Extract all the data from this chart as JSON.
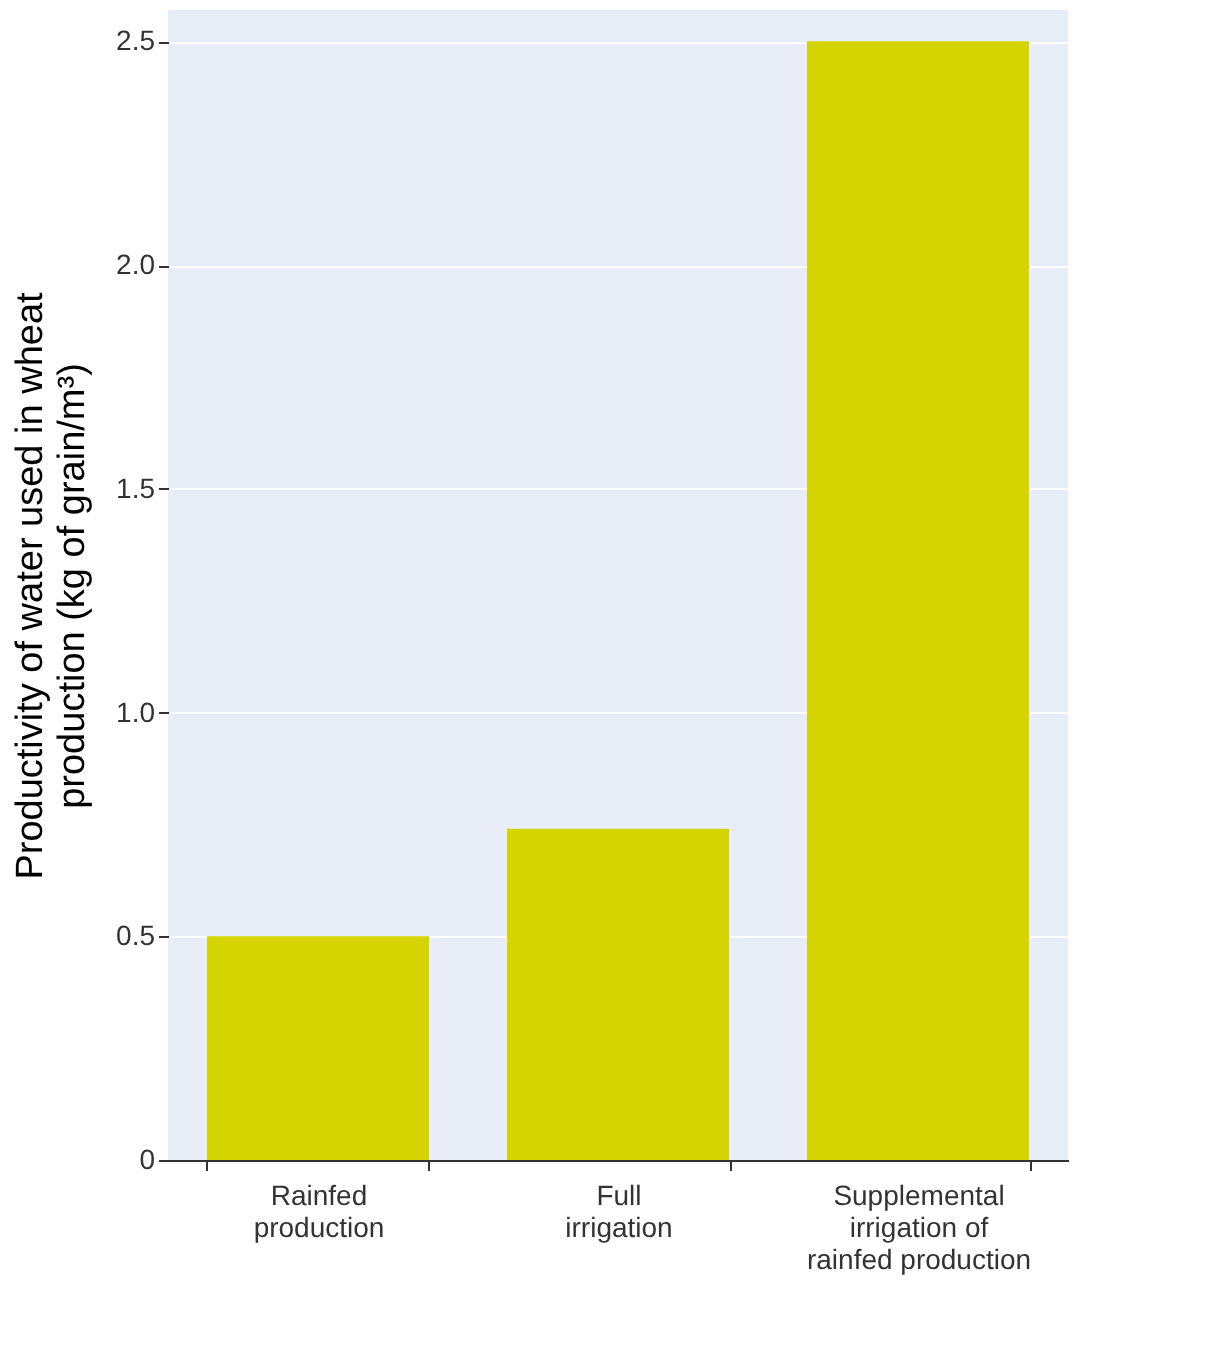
{
  "chart_data": {
    "type": "bar",
    "ylabel": "Productivity of water used in wheat\nproduction (kg of grain/m³)",
    "categories": [
      "Rainfed\nproduction",
      "Full\nirrigation",
      "Supplemental\nirrigation of\nrainfed production"
    ],
    "values": [
      0.5,
      0.74,
      2.5
    ],
    "color": "#d4d400",
    "ylim": [
      0,
      2.57
    ],
    "yticks": [
      0,
      {
        "value": 0.5,
        "label": "0.5"
      },
      {
        "value": 1,
        "label": "1.0"
      },
      {
        "value": 1.5,
        "label": "1.5"
      },
      {
        "value": 2,
        "label": "2.0"
      },
      {
        "value": 2.5,
        "label": "2.5"
      }
    ],
    "grid": "y"
  }
}
